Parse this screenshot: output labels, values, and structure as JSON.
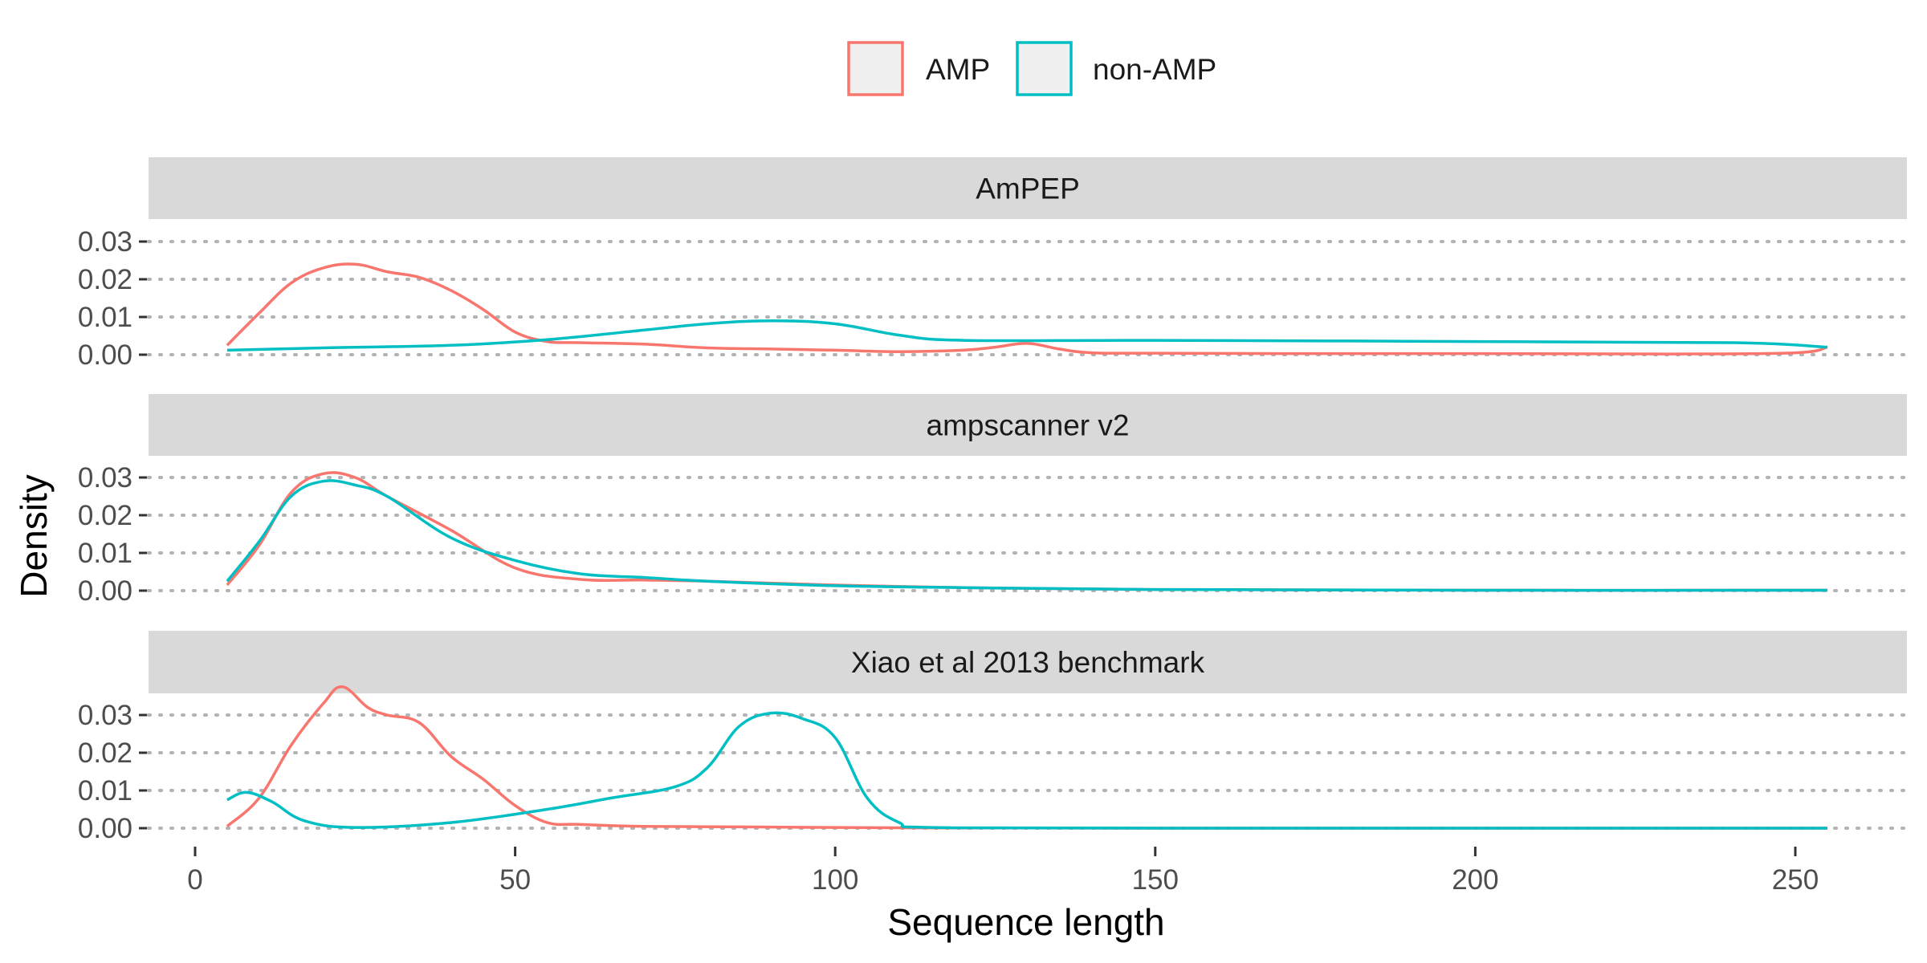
{
  "chart_data": {
    "type": "line",
    "subtype": "density",
    "xlabel": "Sequence length",
    "ylabel": "Density",
    "xlim": [
      -15,
      265
    ],
    "xticks": [
      0,
      50,
      100,
      150,
      200,
      250
    ],
    "ylim": [
      0,
      0.036
    ],
    "yticks": [
      0,
      0.01,
      0.02,
      0.03
    ],
    "ytick_labels": [
      "0.00",
      "0.01",
      "0.02",
      "0.03"
    ],
    "grid": "dotted horizontal at y ticks",
    "legend": {
      "placement": "top-center",
      "entries": [
        {
          "name": "AMP",
          "color": "#F8766D"
        },
        {
          "name": "non-AMP",
          "color": "#00BFC4"
        }
      ]
    },
    "facets": [
      {
        "title": "AmPEP",
        "series": [
          {
            "name": "AMP",
            "color": "#F8766D",
            "x": [
              5,
              10,
              15,
              20,
              25,
              30,
              35,
              40,
              45,
              50,
              55,
              60,
              70,
              80,
              90,
              100,
              110,
              120,
              125,
              130,
              135,
              140,
              150,
              170,
              200,
              230,
              250,
              255
            ],
            "y": [
              0.0025,
              0.011,
              0.019,
              0.023,
              0.024,
              0.022,
              0.0205,
              0.017,
              0.012,
              0.006,
              0.0035,
              0.0032,
              0.0028,
              0.0018,
              0.0015,
              0.0012,
              0.0008,
              0.0012,
              0.002,
              0.003,
              0.0015,
              0.0005,
              0.0004,
              0.0003,
              0.0003,
              0.0002,
              0.0005,
              0.002
            ]
          },
          {
            "name": "non-AMP",
            "color": "#00BFC4",
            "x": [
              5,
              20,
              40,
              55,
              70,
              80,
              90,
              100,
              110,
              120,
              150,
              200,
              240,
              255
            ],
            "y": [
              0.0012,
              0.0018,
              0.0025,
              0.004,
              0.0065,
              0.0082,
              0.009,
              0.0082,
              0.0052,
              0.0038,
              0.0038,
              0.0035,
              0.0032,
              0.002
            ]
          }
        ]
      },
      {
        "title": "ampscanner v2",
        "series": [
          {
            "name": "AMP",
            "color": "#F8766D",
            "x": [
              5,
              10,
              15,
              20,
              25,
              30,
              40,
              50,
              60,
              70,
              80,
              100,
              120,
              150,
              200,
              255
            ],
            "y": [
              0.0015,
              0.012,
              0.026,
              0.031,
              0.03,
              0.025,
              0.016,
              0.006,
              0.003,
              0.0028,
              0.0025,
              0.0015,
              0.0008,
              0.0003,
              0.0001,
              0.0001
            ]
          },
          {
            "name": "non-AMP",
            "color": "#00BFC4",
            "x": [
              5,
              10,
              15,
              20,
              25,
              30,
              40,
              50,
              60,
              70,
              80,
              100,
              120,
              150,
              200,
              255
            ],
            "y": [
              0.0025,
              0.013,
              0.025,
              0.029,
              0.028,
              0.025,
              0.014,
              0.008,
              0.0045,
              0.0035,
              0.0025,
              0.0013,
              0.0008,
              0.0003,
              0.0001,
              0.0001
            ]
          }
        ]
      },
      {
        "title": "Xiao et al 2013 benchmark",
        "series": [
          {
            "name": "AMP",
            "color": "#F8766D",
            "x": [
              5,
              10,
              15,
              20,
              23,
              27,
              30,
              35,
              40,
              45,
              50,
              55,
              60,
              70,
              90,
              110,
              150,
              255
            ],
            "y": [
              0.0005,
              0.008,
              0.022,
              0.033,
              0.0375,
              0.032,
              0.03,
              0.028,
              0.019,
              0.013,
              0.006,
              0.0015,
              0.001,
              0.0005,
              0.0003,
              0.0001,
              0.0,
              0.0
            ]
          },
          {
            "name": "non-AMP",
            "color": "#00BFC4",
            "x": [
              5,
              8,
              12,
              17,
              25,
              40,
              55,
              65,
              75,
              80,
              85,
              90,
              95,
              100,
              105,
              110,
              115,
              150,
              255
            ],
            "y": [
              0.0075,
              0.0095,
              0.007,
              0.002,
              0.0002,
              0.0015,
              0.005,
              0.008,
              0.011,
              0.016,
              0.027,
              0.0305,
              0.029,
              0.024,
              0.008,
              0.0015,
              0.0002,
              0.0,
              0.0
            ]
          }
        ]
      }
    ]
  }
}
